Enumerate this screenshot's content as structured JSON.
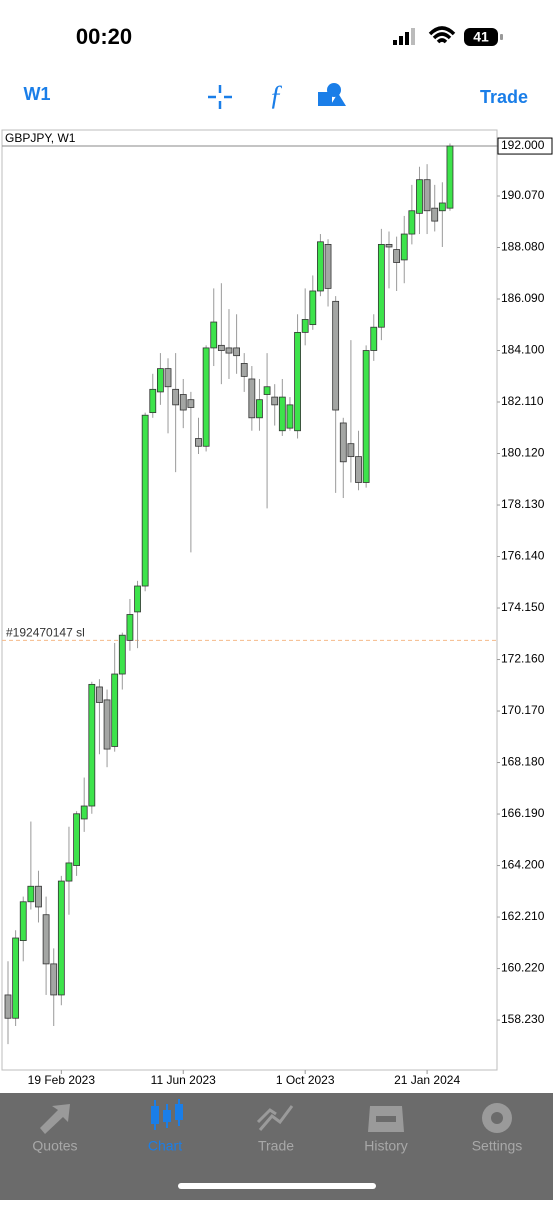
{
  "status_bar": {
    "time": "00:20",
    "battery": "41"
  },
  "toolbar": {
    "timeframe": "W1",
    "trade": "Trade"
  },
  "chart_data": {
    "type": "candlestick",
    "title": "GBPJPY, W1",
    "categories": [
      null,
      null,
      null,
      null,
      null,
      null,
      null,
      "19 Feb 2023",
      null,
      null,
      null,
      null,
      null,
      null,
      null,
      null,
      null,
      null,
      null,
      null,
      null,
      null,
      null,
      "11 Jun 2023",
      null,
      null,
      null,
      null,
      null,
      null,
      null,
      null,
      null,
      null,
      null,
      null,
      null,
      null,
      null,
      "1 Oct 2023",
      null,
      null,
      null,
      null,
      null,
      null,
      null,
      null,
      null,
      null,
      null,
      null,
      null,
      null,
      null,
      "21 Jan 2024",
      null,
      null,
      null
    ],
    "open": [
      159.2,
      158.3,
      161.3,
      162.8,
      163.4,
      162.3,
      160.4,
      159.2,
      163.6,
      164.2,
      166.0,
      166.5,
      171.1,
      170.6,
      168.8,
      171.6,
      172.9,
      174.0,
      175.0,
      181.7,
      182.5,
      183.4,
      182.6,
      182.4,
      182.2,
      180.7,
      180.4,
      184.2,
      184.3,
      184.2,
      184.2,
      183.6,
      183.0,
      181.5,
      182.4,
      182.3,
      181.0,
      181.1,
      181.0,
      184.8,
      185.1,
      186.4,
      188.2,
      186.0,
      181.3,
      180.5,
      180.0,
      179.0,
      184.1,
      185.0,
      188.2,
      188.0,
      187.6,
      188.6,
      189.4,
      190.7,
      189.6,
      189.5,
      189.6
    ],
    "high": [
      160.5,
      161.7,
      163.0,
      165.9,
      164.0,
      163.0,
      161.0,
      163.8,
      165.7,
      166.3,
      167.6,
      171.3,
      171.4,
      171.0,
      172.8,
      173.2,
      174.5,
      175.2,
      181.7,
      183.2,
      184.0,
      183.8,
      184.0,
      183.0,
      182.5,
      181.5,
      184.3,
      186.5,
      186.7,
      185.7,
      185.5,
      184.0,
      183.5,
      183.0,
      184.0,
      182.8,
      183.0,
      182.3,
      185.5,
      186.5,
      187.0,
      188.6,
      188.4,
      186.2,
      181.5,
      184.5,
      181.0,
      184.3,
      185.5,
      188.8,
      188.7,
      188.5,
      189.3,
      190.5,
      191.2,
      191.3,
      190.5,
      190.6,
      192.1
    ],
    "low": [
      157.3,
      158.0,
      160.5,
      162.5,
      162.0,
      159.2,
      158.0,
      158.8,
      162.3,
      163.8,
      165.5,
      166.2,
      168.5,
      168.0,
      168.6,
      171.0,
      172.5,
      172.6,
      174.8,
      181.5,
      182.0,
      180.9,
      179.4,
      181.1,
      176.3,
      180.1,
      180.2,
      183.5,
      182.8,
      183.0,
      183.2,
      182.5,
      181.0,
      181.0,
      178.0,
      181.2,
      180.8,
      181.0,
      180.7,
      184.3,
      184.9,
      186.2,
      185.8,
      178.6,
      178.4,
      179.0,
      178.7,
      178.8,
      183.7,
      184.5,
      186.5,
      186.4,
      186.7,
      188.2,
      188.6,
      188.6,
      188.7,
      188.1,
      189.5
    ],
    "close": [
      158.3,
      161.4,
      162.8,
      163.4,
      162.6,
      160.4,
      159.2,
      163.6,
      164.3,
      166.2,
      166.5,
      171.2,
      170.5,
      168.7,
      171.6,
      173.1,
      173.9,
      175.0,
      181.6,
      182.6,
      183.4,
      182.7,
      182.0,
      181.8,
      181.9,
      180.4,
      184.2,
      185.2,
      184.1,
      184.0,
      183.9,
      183.1,
      181.5,
      182.2,
      182.7,
      182.0,
      182.3,
      182.0,
      184.8,
      185.3,
      186.4,
      188.3,
      186.5,
      181.8,
      179.8,
      180.0,
      179.0,
      184.1,
      185.0,
      188.2,
      188.1,
      187.5,
      188.6,
      189.5,
      190.7,
      189.5,
      189.1,
      189.8,
      192.0
    ],
    "up_color": "#3de34b",
    "down_color": "#a4a6a4",
    "ylim": [
      156.3,
      192.62
    ],
    "yticks": [
      {
        "value": 192.0,
        "label": "192.000"
      },
      {
        "value": 190.07,
        "label": "190.070"
      },
      {
        "value": 188.08,
        "label": "188.080"
      },
      {
        "value": 186.09,
        "label": "186.090"
      },
      {
        "value": 184.1,
        "label": "184.100"
      },
      {
        "value": 182.11,
        "label": "182.110"
      },
      {
        "value": 180.12,
        "label": "180.120"
      },
      {
        "value": 178.13,
        "label": "178.130"
      },
      {
        "value": 176.14,
        "label": "176.140"
      },
      {
        "value": 174.15,
        "label": "174.150"
      },
      {
        "value": 172.16,
        "label": "172.160"
      },
      {
        "value": 170.17,
        "label": "170.170"
      },
      {
        "value": 168.18,
        "label": "168.180"
      },
      {
        "value": 166.19,
        "label": "166.190"
      },
      {
        "value": 164.2,
        "label": "164.200"
      },
      {
        "value": 162.21,
        "label": "162.210"
      },
      {
        "value": 160.22,
        "label": "160.220"
      },
      {
        "value": 158.23,
        "label": "158.230"
      }
    ],
    "annotation": {
      "text": "#192470147 sl",
      "value": 172.9,
      "color": "#f5b98a"
    }
  },
  "tab_bar": {
    "tabs": [
      "Quotes",
      "Chart",
      "Trade",
      "History",
      "Settings"
    ]
  }
}
